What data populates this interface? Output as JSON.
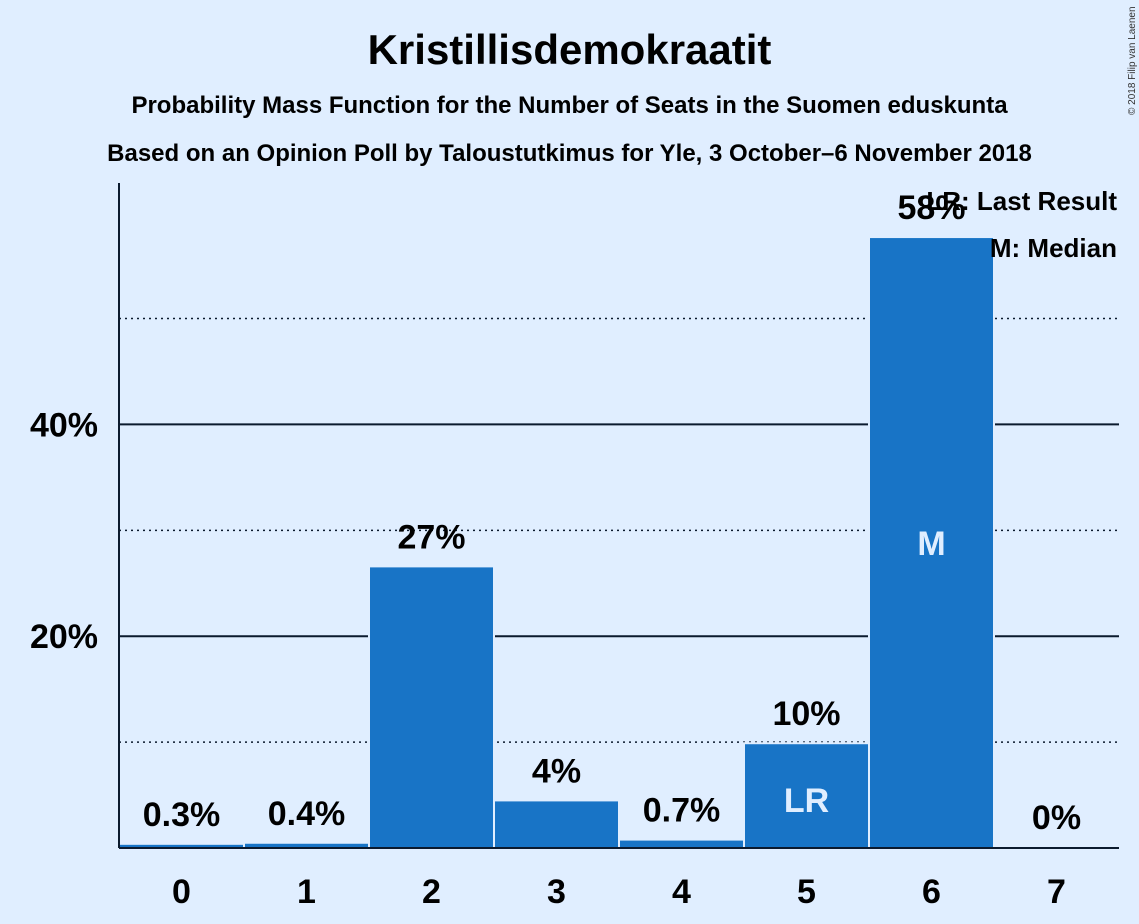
{
  "title": "Kristillisdemokraatit",
  "subtitle1": "Probability Mass Function for the Number of Seats in the Suomen eduskunta",
  "subtitle2": "Based on an Opinion Poll by Taloustutkimus for Yle, 3 October–6 November 2018",
  "copyright": "© 2018 Filip van Laenen",
  "legend": {
    "last_result": "LR: Last Result",
    "median": "M: Median"
  },
  "colors": {
    "background": "#E0EEFF",
    "bar": "#1874C6",
    "text": "#0B1A2E"
  },
  "chart_data": {
    "type": "bar",
    "categories": [
      "0",
      "1",
      "2",
      "3",
      "4",
      "5",
      "6",
      "7"
    ],
    "values": [
      0.3,
      0.4,
      26.5,
      4.4,
      0.7,
      9.8,
      57.6,
      0
    ],
    "value_labels": [
      "0.3%",
      "0.4%",
      "27%",
      "4%",
      "0.7%",
      "10%",
      "58%",
      "0%"
    ],
    "bar_markers": {
      "5": "LR",
      "6": "M"
    },
    "y_ticks": [
      {
        "value": 20,
        "label": "20%"
      },
      {
        "value": 40,
        "label": "40%"
      }
    ],
    "minor_gridlines": [
      10,
      30,
      50
    ],
    "ylim": [
      0,
      62.8
    ],
    "xlabel": "",
    "ylabel": "",
    "grid": true,
    "legend_position": "top-right"
  }
}
